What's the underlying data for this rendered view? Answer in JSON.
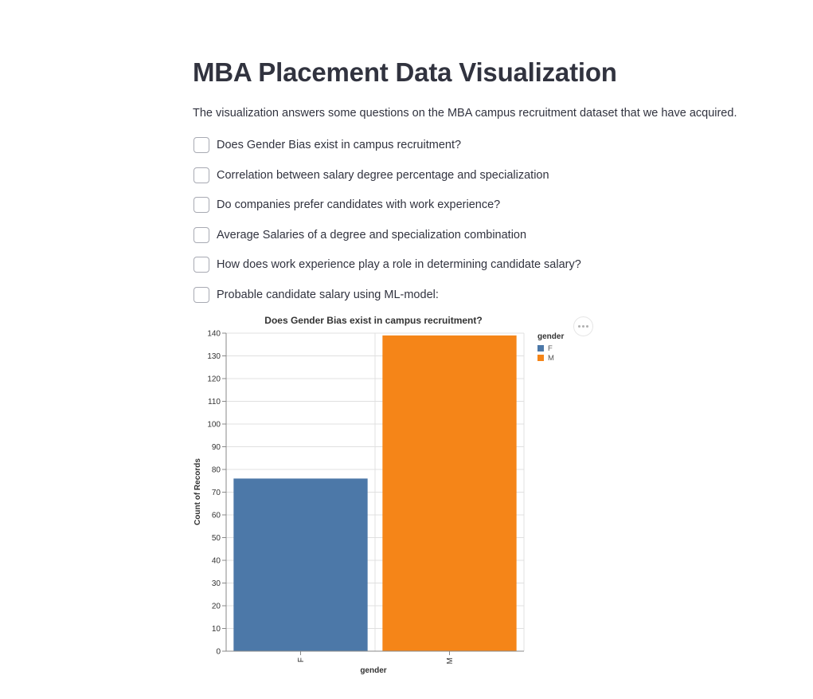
{
  "page": {
    "title": "MBA Placement Data Visualization",
    "intro": "The visualization answers some questions on the MBA campus recruitment dataset that we have acquired."
  },
  "checkboxes": [
    {
      "label": "Does Gender Bias exist in campus recruitment?",
      "checked": true
    },
    {
      "label": "Correlation between salary degree percentage and specialization",
      "checked": false
    },
    {
      "label": "Do companies prefer candidates with work experience?",
      "checked": false
    },
    {
      "label": "Average Salaries of a degree and specialization combination",
      "checked": false
    },
    {
      "label": "How does work experience play a role in determining candidate salary?",
      "checked": false
    },
    {
      "label": "Probable candidate salary using ML-model:",
      "checked": false
    }
  ],
  "chart_data": {
    "type": "bar",
    "title": "Does Gender Bias exist in campus recruitment?",
    "categories": [
      "F",
      "M"
    ],
    "values": [
      76,
      139
    ],
    "colors": [
      "#4c78a8",
      "#f58518"
    ],
    "xlabel": "gender",
    "ylabel": "Count of Records",
    "ylim": [
      0,
      140
    ],
    "yticks": [
      0,
      10,
      20,
      30,
      40,
      50,
      60,
      70,
      80,
      90,
      100,
      110,
      120,
      130,
      140
    ],
    "grid": true,
    "legend": {
      "title": "gender",
      "placement": "right",
      "items": [
        {
          "label": "F",
          "color": "#4c78a8"
        },
        {
          "label": "M",
          "color": "#f58518"
        }
      ]
    }
  },
  "icons": {
    "checkmark": "check-icon",
    "more": "ellipsis-icon"
  }
}
